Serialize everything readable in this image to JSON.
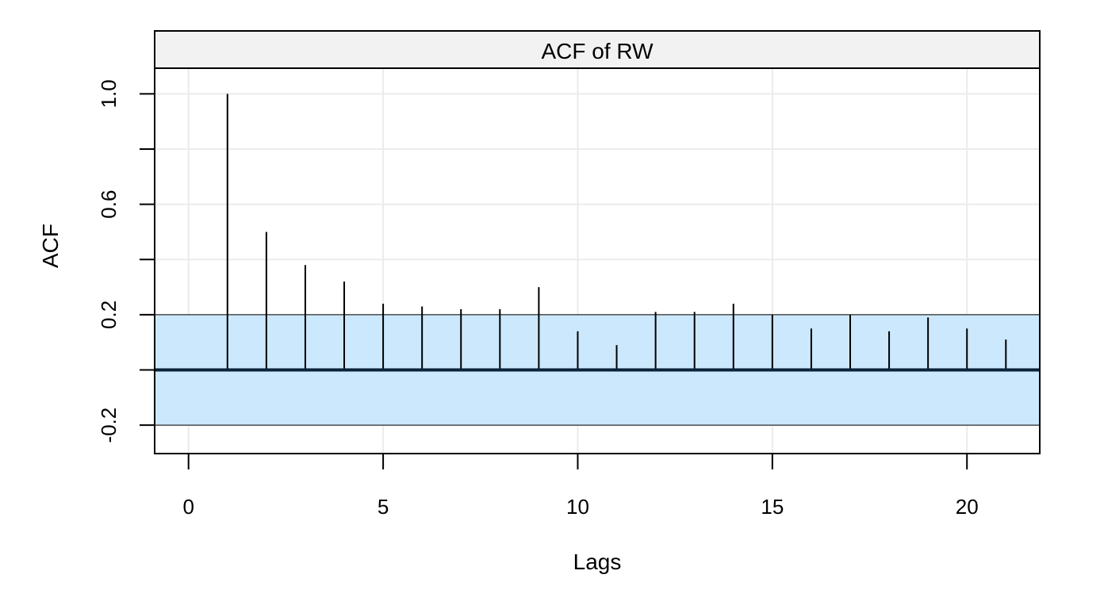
{
  "chart_data": {
    "type": "bar",
    "title": "ACF of RW",
    "xlabel": "Lags",
    "ylabel": "ACF",
    "x": [
      1,
      2,
      3,
      4,
      5,
      6,
      7,
      8,
      9,
      10,
      11,
      12,
      13,
      14,
      15,
      16,
      17,
      18,
      19,
      20,
      21
    ],
    "values": [
      1.0,
      0.5,
      0.38,
      0.32,
      0.24,
      0.23,
      0.22,
      0.22,
      0.3,
      0.14,
      0.09,
      0.21,
      0.21,
      0.24,
      0.2,
      0.15,
      0.2,
      0.14,
      0.19,
      0.15,
      0.11
    ],
    "confidence_band": [
      -0.2,
      0.2
    ],
    "xlim": [
      -0.85,
      21.85
    ],
    "ylim": [
      -0.3,
      1.09
    ],
    "x_ticks": [
      0,
      5,
      10,
      15,
      20
    ],
    "x_tick_labels": [
      "0",
      "5",
      "10",
      "15",
      "20"
    ],
    "y_ticks": [
      -0.2,
      0.2,
      0.6,
      1.0
    ],
    "y_tick_labels": [
      "-0.2",
      "0.2",
      "0.6",
      "1.0"
    ],
    "y_minor_ticks": [
      0.0,
      0.4,
      0.8
    ],
    "grid": true,
    "colors": {
      "band_fill": "#CCE8FC",
      "zero_line": "#0B2238",
      "spike": "#000000",
      "strip_bg": "#F2F2F2",
      "grid": "#EBEBEB"
    }
  }
}
